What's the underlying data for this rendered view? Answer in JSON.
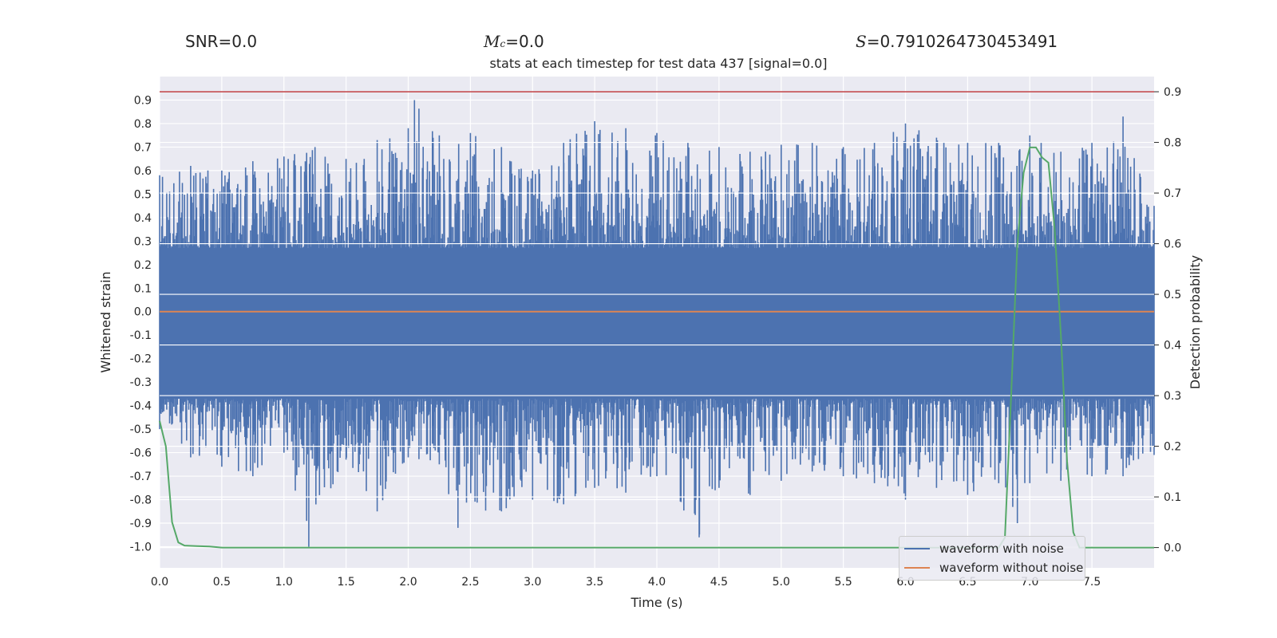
{
  "header": {
    "snr_label": "SNR=0.0",
    "mc_symbol": "M",
    "mc_sub": "c",
    "mc_value": "=0.0",
    "s_symbol": "S",
    "s_value": "=0.7910264730453491"
  },
  "chart_data": {
    "type": "line",
    "title": "stats at each timestep for test data 437 [signal=0.0]",
    "xlabel": "Time (s)",
    "ylabel": "Whitened strain",
    "y2label": "Detection probability",
    "xlim": [
      0.0,
      8.0
    ],
    "ylim": [
      -1.09,
      1.0
    ],
    "y2lim": [
      -0.04,
      0.93
    ],
    "xticks": [
      "0.0",
      "0.5",
      "1.0",
      "1.5",
      "2.0",
      "2.5",
      "3.0",
      "3.5",
      "4.0",
      "4.5",
      "5.0",
      "5.5",
      "6.0",
      "6.5",
      "7.0",
      "7.5"
    ],
    "yticks": [
      "0.9",
      "0.8",
      "0.7",
      "0.6",
      "0.5",
      "0.4",
      "0.3",
      "0.2",
      "0.1",
      "0.0",
      "-0.1",
      "-0.2",
      "-0.3",
      "-0.4",
      "-0.5",
      "-0.6",
      "-0.7",
      "-0.8",
      "-0.9",
      "-1.0"
    ],
    "y2ticks": [
      "0.9",
      "0.8",
      "0.7",
      "0.6",
      "0.5",
      "0.4",
      "0.3",
      "0.2",
      "0.1",
      "0.0"
    ],
    "threshold": {
      "y2": 0.9,
      "color": "#c44e52"
    },
    "grid": true,
    "legend_placement": "lower-right",
    "series": [
      {
        "name": "waveform with noise",
        "color": "#4c72b0",
        "axis": "left",
        "kind": "noise-envelope",
        "upper_envelope": [
          [
            0.0,
            0.58
          ],
          [
            0.25,
            0.62
          ],
          [
            0.5,
            0.6
          ],
          [
            0.75,
            0.64
          ],
          [
            1.0,
            0.66
          ],
          [
            1.25,
            0.7
          ],
          [
            1.5,
            0.65
          ],
          [
            1.75,
            0.73
          ],
          [
            2.0,
            0.78
          ],
          [
            2.05,
            0.9
          ],
          [
            2.25,
            0.75
          ],
          [
            2.5,
            0.76
          ],
          [
            2.75,
            0.7
          ],
          [
            3.0,
            0.6
          ],
          [
            3.25,
            0.72
          ],
          [
            3.5,
            0.81
          ],
          [
            3.75,
            0.78
          ],
          [
            4.0,
            0.76
          ],
          [
            4.25,
            0.72
          ],
          [
            4.5,
            0.7
          ],
          [
            4.75,
            0.68
          ],
          [
            5.0,
            0.71
          ],
          [
            5.25,
            0.72
          ],
          [
            5.5,
            0.7
          ],
          [
            5.75,
            0.72
          ],
          [
            6.0,
            0.8
          ],
          [
            6.25,
            0.74
          ],
          [
            6.5,
            0.72
          ],
          [
            6.75,
            0.72
          ],
          [
            7.0,
            0.75
          ],
          [
            7.25,
            0.68
          ],
          [
            7.5,
            0.72
          ],
          [
            7.75,
            0.83
          ],
          [
            8.0,
            0.45
          ]
        ],
        "lower_envelope": [
          [
            0.0,
            -0.5
          ],
          [
            0.25,
            -0.62
          ],
          [
            0.5,
            -0.66
          ],
          [
            0.75,
            -0.7
          ],
          [
            1.0,
            -0.6
          ],
          [
            1.2,
            -1.0
          ],
          [
            1.5,
            -0.63
          ],
          [
            1.75,
            -0.85
          ],
          [
            2.0,
            -0.62
          ],
          [
            2.25,
            -0.65
          ],
          [
            2.4,
            -0.92
          ],
          [
            2.75,
            -0.85
          ],
          [
            3.0,
            -0.8
          ],
          [
            3.25,
            -0.82
          ],
          [
            3.5,
            -0.75
          ],
          [
            3.75,
            -0.77
          ],
          [
            4.0,
            -0.7
          ],
          [
            4.34,
            -0.96
          ],
          [
            4.5,
            -0.75
          ],
          [
            4.75,
            -0.78
          ],
          [
            5.0,
            -0.72
          ],
          [
            5.25,
            -0.68
          ],
          [
            5.5,
            -0.7
          ],
          [
            5.75,
            -0.73
          ],
          [
            6.0,
            -0.8
          ],
          [
            6.25,
            -0.75
          ],
          [
            6.5,
            -0.78
          ],
          [
            6.75,
            -0.73
          ],
          [
            6.9,
            -0.9
          ],
          [
            7.0,
            -0.73
          ],
          [
            7.25,
            -0.72
          ],
          [
            7.5,
            -0.7
          ],
          [
            7.75,
            -0.7
          ],
          [
            8.0,
            -0.61
          ]
        ]
      },
      {
        "name": "waveform without noise",
        "color": "#dd8452",
        "axis": "left",
        "x": [
          0.0,
          8.0
        ],
        "y": [
          0.0,
          0.0
        ]
      },
      {
        "name": "",
        "color": "#55a868",
        "axis": "right",
        "x": [
          0.0,
          0.05,
          0.1,
          0.15,
          0.2,
          0.3,
          0.4,
          0.5,
          1.0,
          2.0,
          3.0,
          4.0,
          5.0,
          6.0,
          6.5,
          6.75,
          6.8,
          6.85,
          6.9,
          6.95,
          7.0,
          7.05,
          7.1,
          7.15,
          7.2,
          7.25,
          7.3,
          7.35,
          7.4,
          7.5,
          8.0
        ],
        "y": [
          0.25,
          0.2,
          0.05,
          0.01,
          0.004,
          0.003,
          0.002,
          0.0,
          0.0,
          0.0,
          0.0,
          0.0,
          0.0,
          0.0,
          0.0,
          0.0,
          0.02,
          0.3,
          0.6,
          0.74,
          0.79,
          0.79,
          0.77,
          0.76,
          0.63,
          0.42,
          0.17,
          0.03,
          0.0,
          0.0,
          0.0
        ]
      }
    ]
  }
}
